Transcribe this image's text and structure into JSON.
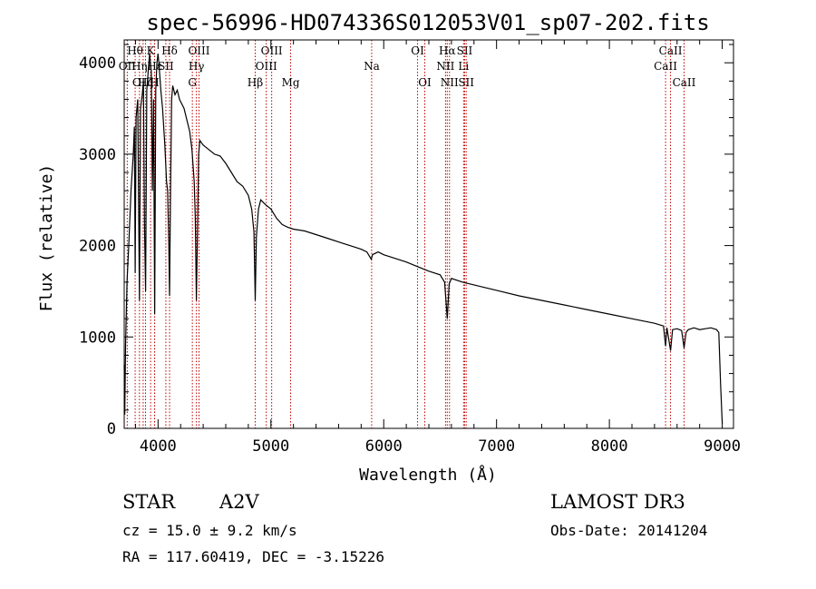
{
  "chart_data": {
    "type": "line",
    "title": "spec-56996-HD074336S012053V01_sp07-202.fits",
    "xlabel": "Wavelength (Å)",
    "ylabel": "Flux (relative)",
    "xlim": [
      3700,
      9100
    ],
    "ylim": [
      0,
      4250
    ],
    "x_ticks": [
      4000,
      5000,
      6000,
      7000,
      8000,
      9000
    ],
    "y_ticks": [
      0,
      1000,
      2000,
      3000,
      4000
    ],
    "series": [
      {
        "name": "flux",
        "points": [
          [
            3700,
            700
          ],
          [
            3705,
            150
          ],
          [
            3712,
            900
          ],
          [
            3725,
            1600
          ],
          [
            3740,
            2000
          ],
          [
            3760,
            2600
          ],
          [
            3780,
            3000
          ],
          [
            3790,
            3300
          ],
          [
            3797,
            1700
          ],
          [
            3805,
            3400
          ],
          [
            3820,
            3600
          ],
          [
            3835,
            1400
          ],
          [
            3845,
            3500
          ],
          [
            3860,
            3650
          ],
          [
            3870,
            3800
          ],
          [
            3880,
            2200
          ],
          [
            3890,
            1500
          ],
          [
            3900,
            3700
          ],
          [
            3915,
            3950
          ],
          [
            3925,
            4100
          ],
          [
            3940,
            3900
          ],
          [
            3950,
            2600
          ],
          [
            3960,
            3600
          ],
          [
            3970,
            1250
          ],
          [
            3980,
            3700
          ],
          [
            3990,
            4000
          ],
          [
            4000,
            4100
          ],
          [
            4010,
            3950
          ],
          [
            4025,
            3700
          ],
          [
            4040,
            3500
          ],
          [
            4060,
            3100
          ],
          [
            4075,
            2700
          ],
          [
            4085,
            2600
          ],
          [
            4095,
            2000
          ],
          [
            4102,
            1450
          ],
          [
            4110,
            2500
          ],
          [
            4120,
            3600
          ],
          [
            4130,
            3750
          ],
          [
            4150,
            3650
          ],
          [
            4170,
            3700
          ],
          [
            4190,
            3600
          ],
          [
            4210,
            3550
          ],
          [
            4230,
            3500
          ],
          [
            4260,
            3350
          ],
          [
            4280,
            3250
          ],
          [
            4300,
            3050
          ],
          [
            4320,
            2700
          ],
          [
            4330,
            2300
          ],
          [
            4340,
            1400
          ],
          [
            4350,
            2200
          ],
          [
            4360,
            3000
          ],
          [
            4370,
            3150
          ],
          [
            4400,
            3100
          ],
          [
            4450,
            3050
          ],
          [
            4500,
            3000
          ],
          [
            4550,
            2980
          ],
          [
            4600,
            2900
          ],
          [
            4650,
            2800
          ],
          [
            4700,
            2700
          ],
          [
            4750,
            2650
          ],
          [
            4800,
            2550
          ],
          [
            4830,
            2400
          ],
          [
            4850,
            2150
          ],
          [
            4861,
            1400
          ],
          [
            4872,
            2100
          ],
          [
            4890,
            2400
          ],
          [
            4910,
            2500
          ],
          [
            4950,
            2450
          ],
          [
            5000,
            2400
          ],
          [
            5050,
            2300
          ],
          [
            5100,
            2230
          ],
          [
            5150,
            2200
          ],
          [
            5200,
            2180
          ],
          [
            5300,
            2160
          ],
          [
            5400,
            2120
          ],
          [
            5500,
            2080
          ],
          [
            5600,
            2040
          ],
          [
            5700,
            2000
          ],
          [
            5800,
            1960
          ],
          [
            5850,
            1930
          ],
          [
            5890,
            1850
          ],
          [
            5900,
            1900
          ],
          [
            5950,
            1930
          ],
          [
            6000,
            1900
          ],
          [
            6100,
            1860
          ],
          [
            6200,
            1820
          ],
          [
            6300,
            1770
          ],
          [
            6400,
            1720
          ],
          [
            6500,
            1680
          ],
          [
            6540,
            1600
          ],
          [
            6563,
            1200
          ],
          [
            6580,
            1580
          ],
          [
            6600,
            1640
          ],
          [
            6700,
            1600
          ],
          [
            6800,
            1570
          ],
          [
            6900,
            1540
          ],
          [
            7000,
            1510
          ],
          [
            7200,
            1450
          ],
          [
            7400,
            1400
          ],
          [
            7600,
            1350
          ],
          [
            7800,
            1300
          ],
          [
            8000,
            1250
          ],
          [
            8200,
            1200
          ],
          [
            8400,
            1150
          ],
          [
            8480,
            1120
          ],
          [
            8498,
            900
          ],
          [
            8510,
            1100
          ],
          [
            8542,
            850
          ],
          [
            8560,
            1080
          ],
          [
            8600,
            1090
          ],
          [
            8640,
            1070
          ],
          [
            8662,
            880
          ],
          [
            8680,
            1050
          ],
          [
            8700,
            1080
          ],
          [
            8750,
            1100
          ],
          [
            8800,
            1080
          ],
          [
            8850,
            1090
          ],
          [
            8900,
            1100
          ],
          [
            8950,
            1080
          ],
          [
            8970,
            1050
          ],
          [
            8985,
            500
          ],
          [
            9000,
            50
          ]
        ]
      }
    ],
    "line_markers": [
      {
        "label": "Hθ",
        "wavelength": 3797,
        "row": 0
      },
      {
        "label": "K",
        "wavelength": 3934,
        "row": 0
      },
      {
        "label": "Hδ",
        "wavelength": 4102,
        "row": 0
      },
      {
        "label": "OIII",
        "wavelength": 4363,
        "row": 0
      },
      {
        "label": "OIII",
        "wavelength": 5007,
        "row": 0
      },
      {
        "label": "OI",
        "wavelength": 6300,
        "row": 0
      },
      {
        "label": "Hα",
        "wavelength": 6563,
        "row": 0
      },
      {
        "label": "SII",
        "wavelength": 6717,
        "row": 0
      },
      {
        "label": "CaII",
        "wavelength": 8542,
        "row": 0
      },
      {
        "label": "OII",
        "wavelength": 3727,
        "row": 1
      },
      {
        "label": "Hη",
        "wavelength": 3835,
        "row": 1
      },
      {
        "label": "Hε",
        "wavelength": 3970,
        "row": 1
      },
      {
        "label": "SII",
        "wavelength": 4069,
        "row": 1
      },
      {
        "label": "Hγ",
        "wavelength": 4340,
        "row": 1
      },
      {
        "label": "OIII",
        "wavelength": 4959,
        "row": 1
      },
      {
        "label": "Na",
        "wavelength": 5893,
        "row": 1
      },
      {
        "label": "NII",
        "wavelength": 6548,
        "row": 1
      },
      {
        "label": "Li",
        "wavelength": 6708,
        "row": 1
      },
      {
        "label": "CaII",
        "wavelength": 8498,
        "row": 1
      },
      {
        "label": "OIII",
        "wavelength": 3868,
        "row": 2
      },
      {
        "label": "Hζ",
        "wavelength": 3889,
        "row": 2
      },
      {
        "label": "H",
        "wavelength": 3969,
        "row": 2
      },
      {
        "label": "G",
        "wavelength": 4304,
        "row": 2
      },
      {
        "label": "Hβ",
        "wavelength": 4861,
        "row": 2
      },
      {
        "label": "Mg",
        "wavelength": 5175,
        "row": 2
      },
      {
        "label": "OI",
        "wavelength": 6364,
        "row": 2
      },
      {
        "label": "NII",
        "wavelength": 6583,
        "row": 2
      },
      {
        "label": "SII",
        "wavelength": 6731,
        "row": 2
      },
      {
        "label": "CaII",
        "wavelength": 8662,
        "row": 2
      }
    ],
    "line_color": "#c00000",
    "series_color": "#000000"
  },
  "info": {
    "object_class": "STAR",
    "subclass": "A2V",
    "survey": "LAMOST DR3",
    "cz": "cz = 15.0 ± 9.2 km/s",
    "obs_date": "Obs-Date: 20141204",
    "coords": "RA = 117.60419, DEC =  -3.15226"
  }
}
